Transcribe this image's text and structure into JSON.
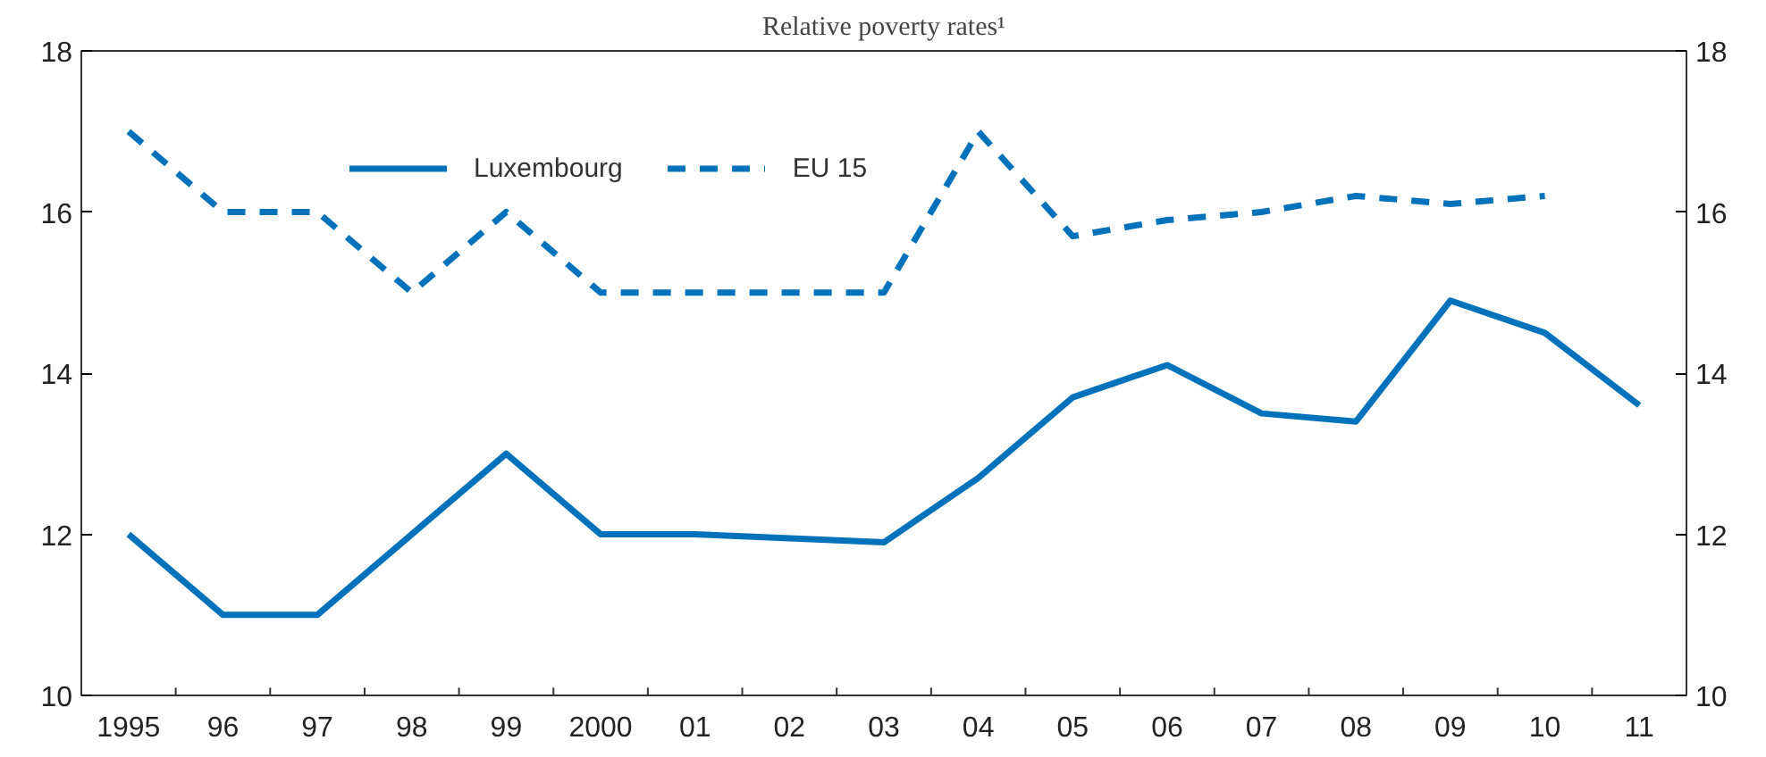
{
  "chart_data": {
    "type": "line",
    "subtitle": "Relative poverty rates¹",
    "categories": [
      "1995",
      "96",
      "97",
      "98",
      "99",
      "2000",
      "01",
      "02",
      "03",
      "04",
      "05",
      "06",
      "07",
      "08",
      "09",
      "10",
      "11"
    ],
    "series": [
      {
        "name": "Luxembourg",
        "color": "#0072bb",
        "line_style": "solid",
        "values": [
          12,
          11,
          11,
          12,
          13,
          12,
          12,
          11.95,
          11.9,
          12.7,
          13.7,
          14.1,
          13.5,
          13.4,
          14.9,
          14.5,
          13.6
        ]
      },
      {
        "name": "EU 15",
        "color": "#0072bb",
        "line_style": "dashed",
        "values": [
          17,
          16,
          16,
          15,
          16,
          15,
          15,
          15,
          15,
          17,
          15.7,
          15.9,
          16,
          16.2,
          16.1,
          16.2,
          null
        ]
      }
    ],
    "ylim": [
      10,
      18
    ],
    "yticks": [
      10,
      12,
      14,
      16,
      18
    ],
    "y2lim": [
      10,
      18
    ],
    "y2ticks": [
      10,
      12,
      14,
      16,
      18
    ],
    "grid": false,
    "legend": "top",
    "marker": "none"
  }
}
